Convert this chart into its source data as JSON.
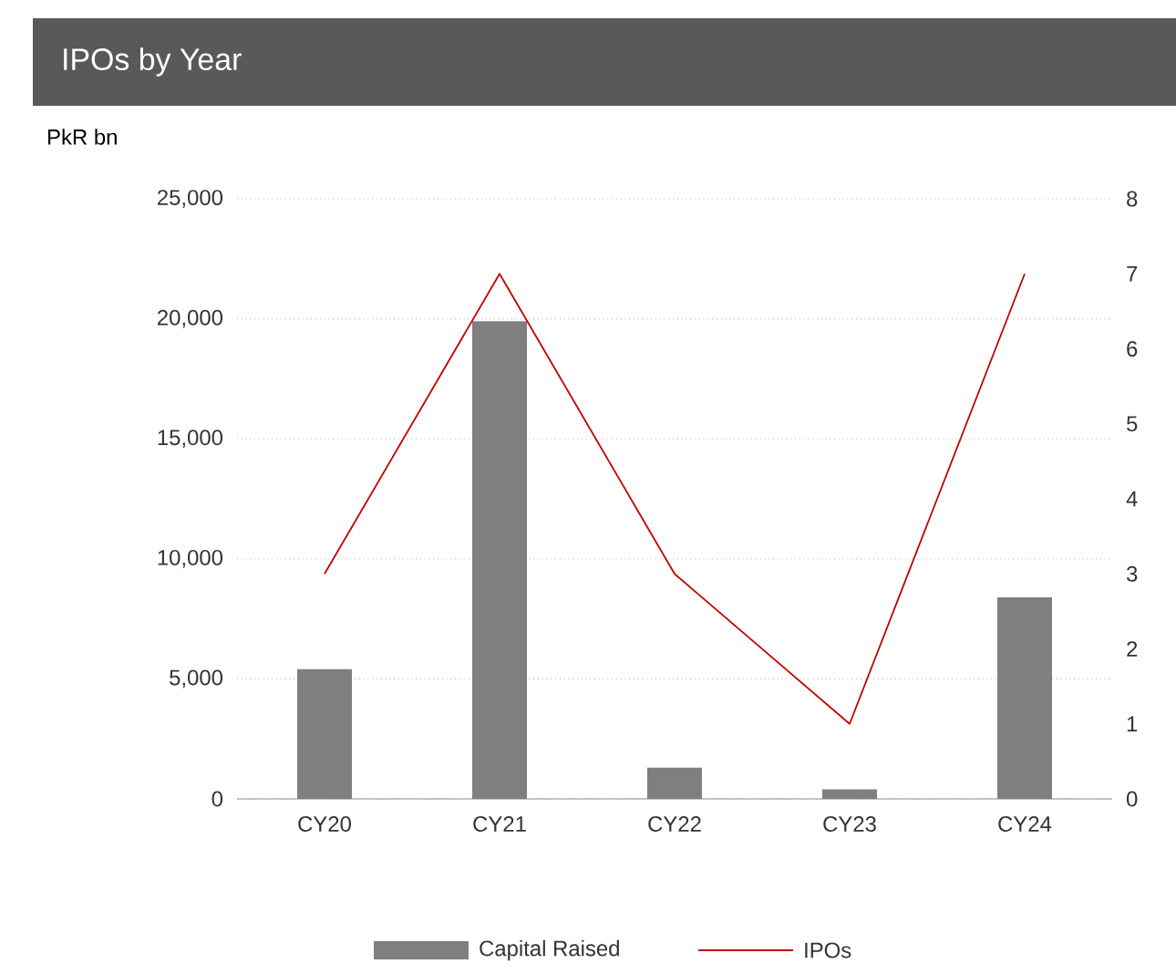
{
  "chart_data": {
    "type": "bar",
    "title": "IPOs by Year",
    "ylabel": "PkR bn",
    "categories": [
      "CY20",
      "CY21",
      "CY22",
      "CY23",
      "CY24"
    ],
    "series": [
      {
        "name": "Capital Raised",
        "color": "#7f7f7f",
        "values": [
          5400,
          19900,
          1300,
          400,
          8400
        ]
      },
      {
        "name": "IPOs",
        "type": "line",
        "axis": "y2",
        "color": "#c00000",
        "values": [
          3,
          7,
          3,
          1,
          7
        ]
      }
    ],
    "ylim": [
      0,
      25000
    ],
    "yticks": [
      {
        "value": 0,
        "label": "0"
      },
      {
        "value": 5000,
        "label": "5,000"
      },
      {
        "value": 10000,
        "label": "10,000"
      },
      {
        "value": 15000,
        "label": "15,000"
      },
      {
        "value": 20000,
        "label": "20,000"
      },
      {
        "value": 25000,
        "label": "25,000"
      }
    ],
    "y2lim": [
      0,
      8
    ],
    "y2ticks": [
      0,
      1,
      2,
      3,
      4,
      5,
      6,
      7,
      8
    ],
    "grid": "y",
    "legend": "bottom"
  }
}
